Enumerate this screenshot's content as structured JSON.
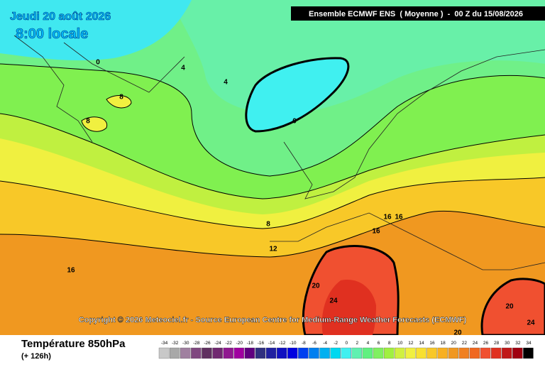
{
  "header": {
    "date": "Jeudi 20 août 2026",
    "time": "8:00 locale",
    "model": "Ensemble ECMWF ENS  ( Moyenne )  -  00 Z du 15/08/2026"
  },
  "copyright": "Copyright © 2026 Meteociel.fr - Source European Centre for Medium-Range Weather Forecasts (ECMWF)",
  "footer": {
    "title": "Température 850hPa",
    "lead": "(+ 126h)"
  },
  "contour_labels": [
    "0",
    "4",
    "4",
    "8",
    "8",
    "0",
    "8",
    "12",
    "16",
    "16",
    "16",
    "16",
    "20",
    "24",
    "20",
    "24",
    "20"
  ],
  "legend": {
    "values": [
      -34,
      -32,
      -30,
      -28,
      -26,
      -24,
      -22,
      -20,
      -18,
      -16,
      -14,
      -12,
      -10,
      -8,
      -6,
      -4,
      -2,
      0,
      2,
      4,
      6,
      8,
      10,
      12,
      14,
      16,
      18,
      20,
      22,
      24,
      26,
      28,
      30,
      32,
      34
    ],
    "colors": [
      "#c8c8c8",
      "#a8a8a8",
      "#a080a0",
      "#804880",
      "#603060",
      "#702870",
      "#901890",
      "#a000a0",
      "#600080",
      "#303080",
      "#2020a0",
      "#1010c0",
      "#0000e0",
      "#0040f0",
      "#0080f0",
      "#00b0f0",
      "#00d8f0",
      "#40f0f0",
      "#60f0b0",
      "#60f080",
      "#80f060",
      "#a0f040",
      "#d0f040",
      "#f0f040",
      "#f8e030",
      "#f8c828",
      "#f8b020",
      "#f09820",
      "#f08020",
      "#f06820",
      "#f05030",
      "#e03020",
      "#c01818",
      "#a00010",
      "#000000"
    ]
  }
}
